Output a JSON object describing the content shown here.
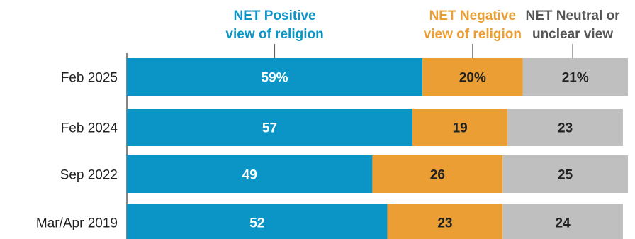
{
  "chart_data": {
    "type": "bar",
    "orientation": "horizontal",
    "stacked": true,
    "normalized_to_100": true,
    "categories": [
      "Feb 2025",
      "Feb 2024",
      "Sep 2022",
      "Mar/Apr 2019"
    ],
    "series": [
      {
        "name": "NET Positive view of religion",
        "legend_lines": [
          "NET Positive",
          "view of religion"
        ],
        "color": "#0b95c6",
        "label_color": "#ffffff",
        "values": [
          59,
          57,
          49,
          52
        ],
        "labels": [
          "59%",
          "57",
          "49",
          "52"
        ]
      },
      {
        "name": "NET Negative view of religion",
        "legend_lines": [
          "NET Negative",
          "view of religion"
        ],
        "color": "#eb9e33",
        "label_color": "#222222",
        "values": [
          20,
          19,
          26,
          23
        ],
        "labels": [
          "20%",
          "19",
          "26",
          "23"
        ]
      },
      {
        "name": "NET Neutral or unclear view",
        "legend_lines": [
          "NET Neutral or",
          "unclear view"
        ],
        "color": "#bfbfbf",
        "legend_color": "#555555",
        "label_color": "#222222",
        "values": [
          21,
          23,
          25,
          24
        ],
        "labels": [
          "21%",
          "23",
          "25",
          "24"
        ]
      }
    ],
    "xlim": [
      0,
      100
    ],
    "grid": false,
    "legend_placement": "top"
  }
}
